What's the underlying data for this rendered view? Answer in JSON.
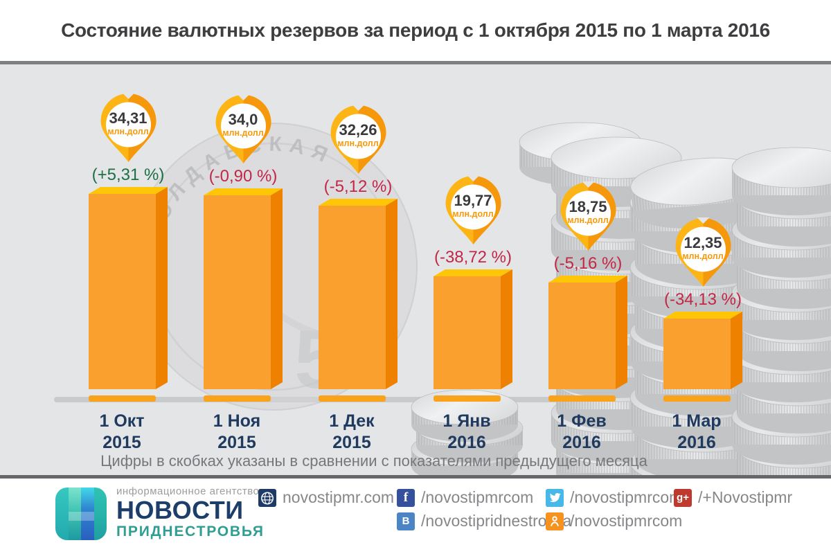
{
  "title": "Состояние валютных резервов за период с 1 октября 2015 по 1 марта 2016",
  "note": "Цифры в скобках указаны в сравнении с показателями предыдущего месяца",
  "chart_data": {
    "type": "bar",
    "title": "Состояние валютных резервов за период с 1 октября 2015 по 1 марта 2016",
    "unit": "млн.долл",
    "ylabel": "",
    "xlabel": "",
    "ylim": [
      0,
      40
    ],
    "grid": false,
    "points": [
      {
        "label": "1 Окт",
        "year": "2015",
        "value": 34.31,
        "value_label": "34,31",
        "change": "(+5,31 %)",
        "direction": "up"
      },
      {
        "label": "1 Ноя",
        "year": "2015",
        "value": 34.0,
        "value_label": "34,0",
        "change": "(-0,90 %)",
        "direction": "down"
      },
      {
        "label": "1 Дек",
        "year": "2015",
        "value": 32.26,
        "value_label": "32,26",
        "change": "(-5,12 %)",
        "direction": "down"
      },
      {
        "label": "1 Янв",
        "year": "2016",
        "value": 19.77,
        "value_label": "19,77",
        "change": "(-38,72 %)",
        "direction": "down"
      },
      {
        "label": "1 Фев",
        "year": "2016",
        "value": 18.75,
        "value_label": "18,75",
        "change": "(-5,16 %)",
        "direction": "down"
      },
      {
        "label": "1 Мар",
        "year": "2016",
        "value": 12.35,
        "value_label": "12,35",
        "change": "(-34,13 %)",
        "direction": "down"
      }
    ],
    "colors": {
      "bar_front": "#F9A02E",
      "bar_top": "#FFC607",
      "bar_side": "#EF8100",
      "strip": "#F9A21C",
      "pin_left": "#FCB515",
      "pin_right": "#F6980B",
      "positive": "#1E6F46",
      "negative": "#C22747",
      "month_label": "#1F3A5E"
    }
  },
  "footer": {
    "tagline": "информационное агентство",
    "brand_top": "НОВОСТИ",
    "brand_bottom": "ПРИДНЕСТРОВЬЯ",
    "website": {
      "label": "novostipmr.com"
    },
    "facebook": {
      "label": "/novostipmrcom"
    },
    "vk": {
      "label": "/novostipridnestrovya"
    },
    "twitter": {
      "label": "/novostipmrcom"
    },
    "odnoklassniki": {
      "label": "/novostipmrcom"
    },
    "googleplus": {
      "label": "/+Novostipmr"
    }
  }
}
